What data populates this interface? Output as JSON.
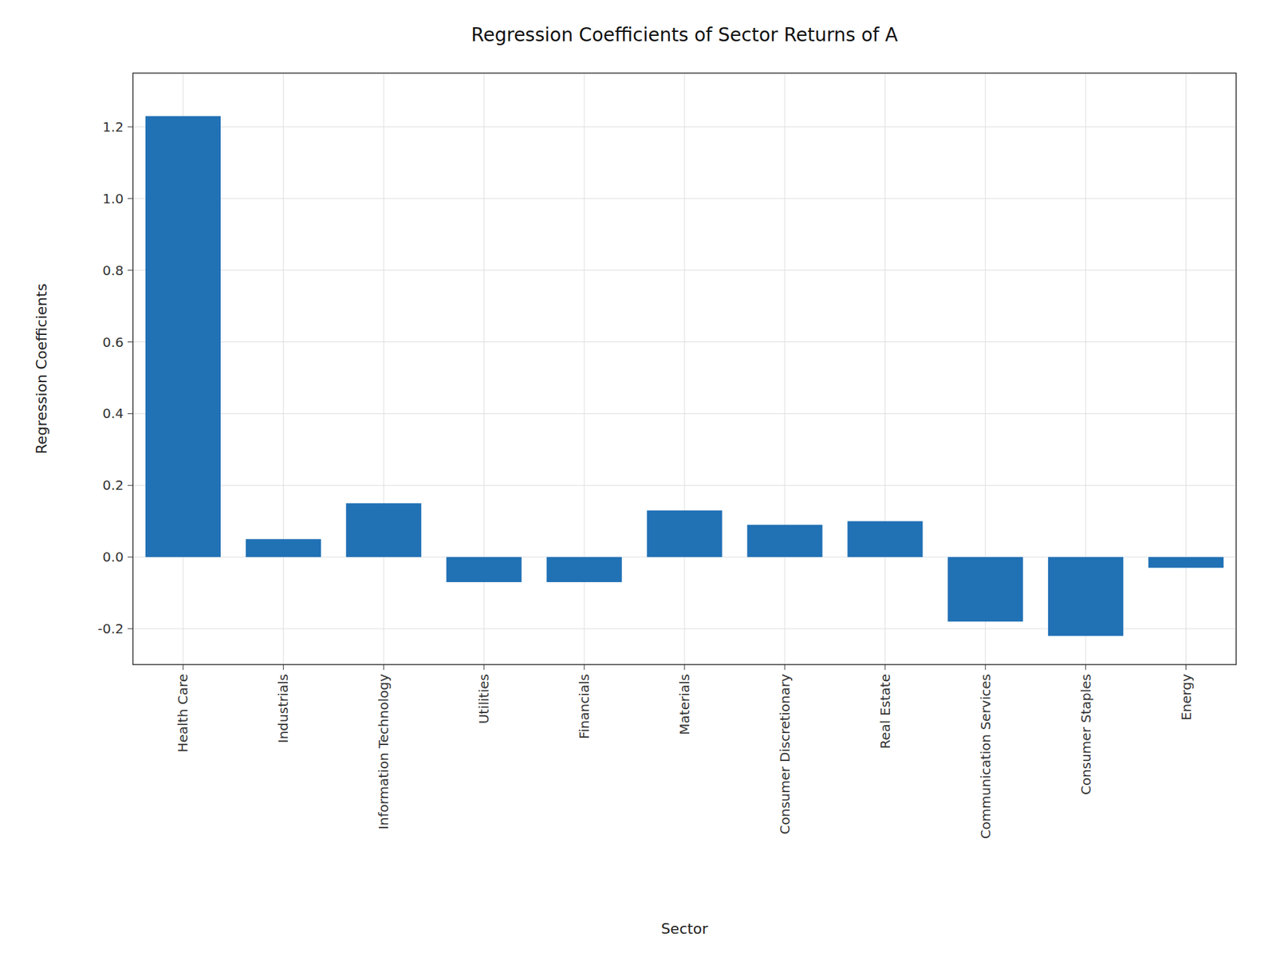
{
  "chart_data": {
    "type": "bar",
    "title": "Regression Coefficients of Sector Returns of A",
    "xlabel": "Sector",
    "ylabel": "Regression Coefficients",
    "categories": [
      "Health Care",
      "Industrials",
      "Information Technology",
      "Utilities",
      "Financials",
      "Materials",
      "Consumer Discretionary",
      "Real Estate",
      "Communication Services",
      "Consumer Staples",
      "Energy"
    ],
    "values": [
      1.23,
      0.05,
      0.15,
      -0.07,
      -0.07,
      0.13,
      0.09,
      0.1,
      -0.18,
      -0.22,
      -0.03
    ],
    "color": "#2171b5",
    "ylim": [
      -0.3,
      1.35
    ],
    "yticks": [
      -0.2,
      {
        "value": 0,
        "label": "0.0"
      },
      0.2,
      0.4,
      0.6,
      0.8,
      {
        "value": 1,
        "label": "1.0"
      },
      1.2
    ],
    "grid": true
  }
}
